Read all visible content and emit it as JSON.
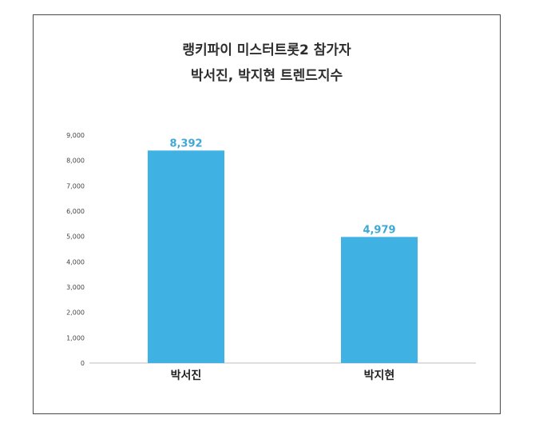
{
  "chart_data": {
    "type": "bar",
    "title_line1": "랭키파이 미스터트롯2 참가자",
    "title_line2": "박서진, 박지현 트렌드지수",
    "categories": [
      "박서진",
      "박지현"
    ],
    "values": [
      8392,
      4979
    ],
    "value_labels": [
      "8,392",
      "4,979"
    ],
    "ylim": [
      0,
      9000
    ],
    "yticks": [
      0,
      1000,
      2000,
      3000,
      4000,
      5000,
      6000,
      7000,
      8000,
      9000
    ],
    "ytick_labels": [
      "0",
      "1,000",
      "2,000",
      "3,000",
      "4,000",
      "5,000",
      "6,000",
      "7,000",
      "8,000",
      "9,000"
    ],
    "grid": false,
    "bar_color": "#3fb2e3",
    "label_color": "#3fa8d4"
  }
}
